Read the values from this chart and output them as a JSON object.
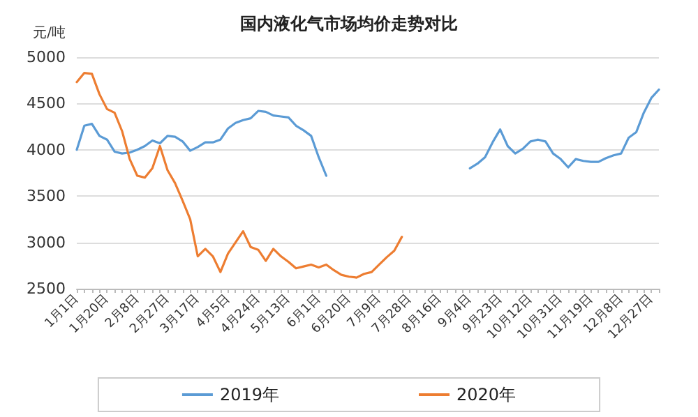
{
  "chart_data": {
    "type": "line",
    "title": "国内液化气市场均价走势对比",
    "ylabel": "元/吨",
    "categories": [
      "1月1日",
      null,
      null,
      null,
      "1月20日",
      null,
      null,
      null,
      "2月8日",
      null,
      null,
      null,
      "2月27日",
      null,
      null,
      null,
      "3月17日",
      null,
      null,
      null,
      "4月5日",
      null,
      null,
      null,
      "4月24日",
      null,
      null,
      null,
      "5月13日",
      null,
      null,
      null,
      "6月1日",
      null,
      null,
      null,
      "6月20日",
      null,
      null,
      null,
      "7月9日",
      null,
      null,
      null,
      "7月28日",
      null,
      null,
      null,
      "8月16日",
      null,
      null,
      null,
      "9月4日",
      null,
      null,
      null,
      "9月23日",
      null,
      null,
      null,
      "10月12日",
      null,
      null,
      null,
      "10月31日",
      null,
      null,
      null,
      "11月19日",
      null,
      null,
      null,
      "12月8日",
      null,
      null,
      null,
      "12月27日",
      null
    ],
    "series": [
      {
        "name": "2019年",
        "color": "#5b9bd5",
        "values": [
          4000,
          4260,
          4280,
          4150,
          4110,
          3980,
          3960,
          3970,
          4000,
          4040,
          4100,
          4070,
          4150,
          4140,
          4090,
          3990,
          4030,
          4080,
          4080,
          4110,
          4230,
          4290,
          4320,
          4340,
          4420,
          4410,
          4370,
          4360,
          4350,
          4260,
          4210,
          4150,
          3920,
          3720,
          null,
          null,
          null,
          null,
          null,
          null,
          null,
          null,
          null,
          null,
          null,
          null,
          null,
          null,
          null,
          null,
          null,
          null,
          3800,
          3850,
          3920,
          4080,
          4220,
          4040,
          3960,
          4010,
          4090,
          4110,
          4090,
          3960,
          3900,
          3810,
          3900,
          3880,
          3870,
          3870,
          3910,
          3940,
          3960,
          4130,
          4190,
          4400,
          4560,
          4650
        ]
      },
      {
        "name": "2020年",
        "color": "#ed7d31",
        "values": [
          4730,
          4830,
          4820,
          4600,
          4440,
          4400,
          4200,
          3900,
          3720,
          3700,
          3800,
          4040,
          3780,
          3640,
          3450,
          3250,
          2850,
          2930,
          2850,
          2680,
          2880,
          3000,
          3120,
          2950,
          2920,
          2800,
          2930,
          2850,
          2790,
          2720,
          2740,
          2760,
          2730,
          2760,
          2700,
          2650,
          2630,
          2620,
          2660,
          2680,
          2760,
          2840,
          2910,
          3060,
          null,
          null,
          null,
          null,
          null,
          null,
          null,
          null,
          null,
          null,
          null,
          null,
          null,
          null,
          null,
          null,
          null,
          null,
          null,
          null,
          null,
          null,
          null,
          null,
          null,
          null,
          null,
          null,
          null,
          null,
          null,
          null,
          null,
          null
        ]
      }
    ],
    "ylim": [
      2500,
      5000
    ],
    "yticks": [
      2500,
      3000,
      3500,
      4000,
      4500,
      5000
    ],
    "grid": "y",
    "legend": "bottom",
    "marker": "none",
    "line_style": "solid"
  }
}
